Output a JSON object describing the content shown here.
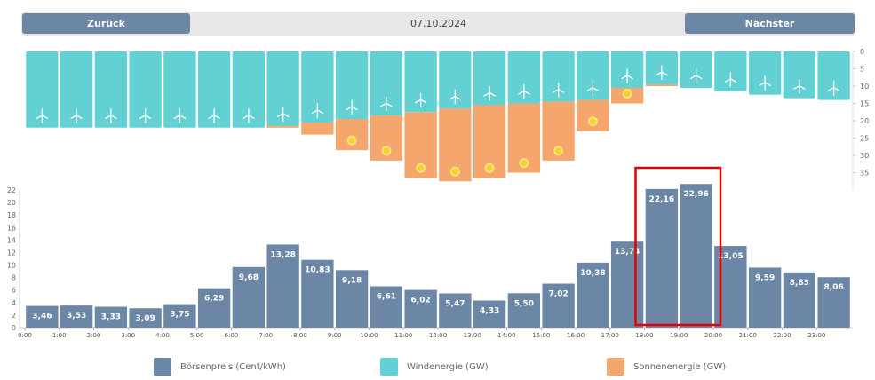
{
  "nav": {
    "prev_label": "Zurück",
    "next_label": "Nächster",
    "date": "07.10.2024"
  },
  "legend": [
    {
      "label": "Börsenpreis (Cent/kWh)",
      "color": "#6c86a6"
    },
    {
      "label": "Windenergie (GW)",
      "color": "#63d0d4"
    },
    {
      "label": "Sonnenenergie (GW)",
      "color": "#f4a66c"
    }
  ],
  "colors": {
    "price": "#6c86a6",
    "wind": "#63d0d4",
    "solar": "#f4a66c",
    "highlight": "#e00000",
    "sun_icon": "#f6d02f"
  },
  "icons": {
    "wind": "wind-turbine-icon",
    "solar": "sun-icon"
  },
  "highlight_hours": [
    18,
    19
  ],
  "chart_data": [
    {
      "type": "bar",
      "categories": [
        "0:00",
        "1:00",
        "2:00",
        "3:00",
        "4:00",
        "5:00",
        "6:00",
        "7:00",
        "8:00",
        "9:00",
        "10:00",
        "11:00",
        "12:00",
        "13:00",
        "14:00",
        "15:00",
        "16:00",
        "17:00",
        "18:00",
        "19:00",
        "20:00",
        "21:00",
        "22:00",
        "23:00"
      ],
      "tick_labels": [
        "0:00",
        "1:00",
        "2:00",
        "3:00",
        "4:00",
        "5:00",
        "6:00",
        "7:00",
        "8:00",
        "9:00",
        "10:00",
        "11:00",
        "12:00",
        "13:00",
        "14:00",
        "15:00",
        "16:00",
        "17:00",
        "18:00",
        "19:00",
        "20:00",
        "21:00",
        "22:00",
        "23:00"
      ],
      "ylim": [
        0,
        22
      ],
      "yticks": [
        0,
        2,
        4,
        6,
        8,
        10,
        12,
        14,
        16,
        18,
        20,
        22
      ],
      "series": [
        {
          "name": "Börsenpreis (Cent/kWh)",
          "values": [
            3.46,
            3.53,
            3.33,
            3.09,
            3.75,
            6.29,
            9.68,
            13.28,
            10.83,
            9.18,
            6.61,
            6.02,
            5.47,
            4.33,
            5.5,
            7.02,
            10.38,
            13.74,
            22.16,
            22.96,
            13.05,
            9.59,
            8.83,
            8.06
          ],
          "labels": [
            "3,46",
            "3,53",
            "3,33",
            "3,09",
            "3,75",
            "6,29",
            "9,68",
            "13,28",
            "10,83",
            "9,18",
            "6,61",
            "6,02",
            "5,47",
            "4,33",
            "5,50",
            "7,02",
            "10,38",
            "13,74",
            "22,16",
            "22,96",
            "13,05",
            "9,59",
            "8,83",
            "8,06"
          ]
        }
      ]
    },
    {
      "type": "bar",
      "stacked": true,
      "orientation": "downward",
      "categories": [
        "0:00",
        "1:00",
        "2:00",
        "3:00",
        "4:00",
        "5:00",
        "6:00",
        "7:00",
        "8:00",
        "9:00",
        "10:00",
        "11:00",
        "12:00",
        "13:00",
        "14:00",
        "15:00",
        "16:00",
        "17:00",
        "18:00",
        "19:00",
        "20:00",
        "21:00",
        "22:00",
        "23:00"
      ],
      "ylim": [
        0,
        40
      ],
      "yticks": [
        0,
        5,
        10,
        15,
        20,
        25,
        30,
        35
      ],
      "series": [
        {
          "name": "Windenergie (GW)",
          "values": [
            22,
            22,
            22,
            22,
            22,
            22,
            22,
            21.5,
            20.5,
            19.5,
            18.5,
            17.5,
            16.5,
            15.5,
            15,
            14.5,
            14,
            10.5,
            9.5,
            10.5,
            11.5,
            12.5,
            13.5,
            14
          ]
        },
        {
          "name": "Sonnenenergie (GW)",
          "values": [
            0,
            0,
            0,
            0,
            0,
            0,
            0,
            0.5,
            3.5,
            9,
            13,
            19,
            21,
            21,
            20,
            17,
            9,
            4.5,
            0.5,
            0,
            0,
            0,
            0,
            0
          ]
        }
      ]
    }
  ]
}
